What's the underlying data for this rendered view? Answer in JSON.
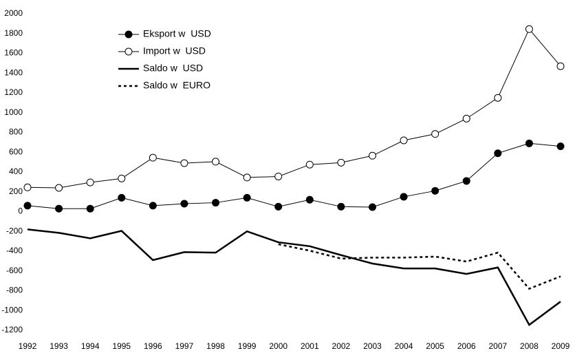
{
  "chart_data": {
    "type": "line",
    "categories": [
      "1992",
      "1993",
      "1994",
      "1995",
      "1996",
      "1997",
      "1998",
      "1999",
      "2000",
      "2001",
      "2002",
      "2003",
      "2004",
      "2005",
      "2006",
      "2007",
      "2008",
      "2009"
    ],
    "series": [
      {
        "name": "Eksport w  USD",
        "color": "#000000",
        "marker": "filled",
        "dash": false,
        "values": [
          60,
          30,
          30,
          140,
          60,
          80,
          90,
          140,
          50,
          120,
          50,
          45,
          150,
          210,
          310,
          590,
          690,
          660
        ]
      },
      {
        "name": "Import w  USD",
        "color": "#000000",
        "marker": "open",
        "dash": false,
        "values": [
          245,
          240,
          295,
          335,
          545,
          490,
          505,
          345,
          355,
          475,
          495,
          565,
          720,
          785,
          940,
          1150,
          1845,
          1470
        ]
      },
      {
        "name": "Saldo w  USD",
        "color": "#000000",
        "marker": "none",
        "dash": false,
        "values": [
          -180,
          -215,
          -270,
          -195,
          -490,
          -410,
          -415,
          -200,
          -310,
          -350,
          -440,
          -525,
          -575,
          -575,
          -630,
          -565,
          -1145,
          -910
        ]
      },
      {
        "name": "Saldo w  EURO",
        "color": "#000000",
        "marker": "none",
        "dash": true,
        "values": [
          null,
          null,
          null,
          null,
          null,
          null,
          null,
          null,
          -330,
          -395,
          -475,
          -465,
          -465,
          -455,
          -505,
          -415,
          -780,
          -655
        ]
      }
    ],
    "ylim": [
      -1200,
      2000
    ],
    "yticks": [
      -1200,
      -1000,
      -800,
      -600,
      -400,
      -200,
      0,
      200,
      400,
      600,
      800,
      1000,
      1200,
      1400,
      1600,
      1800,
      2000
    ],
    "grid": false,
    "legend": "upper-left"
  }
}
